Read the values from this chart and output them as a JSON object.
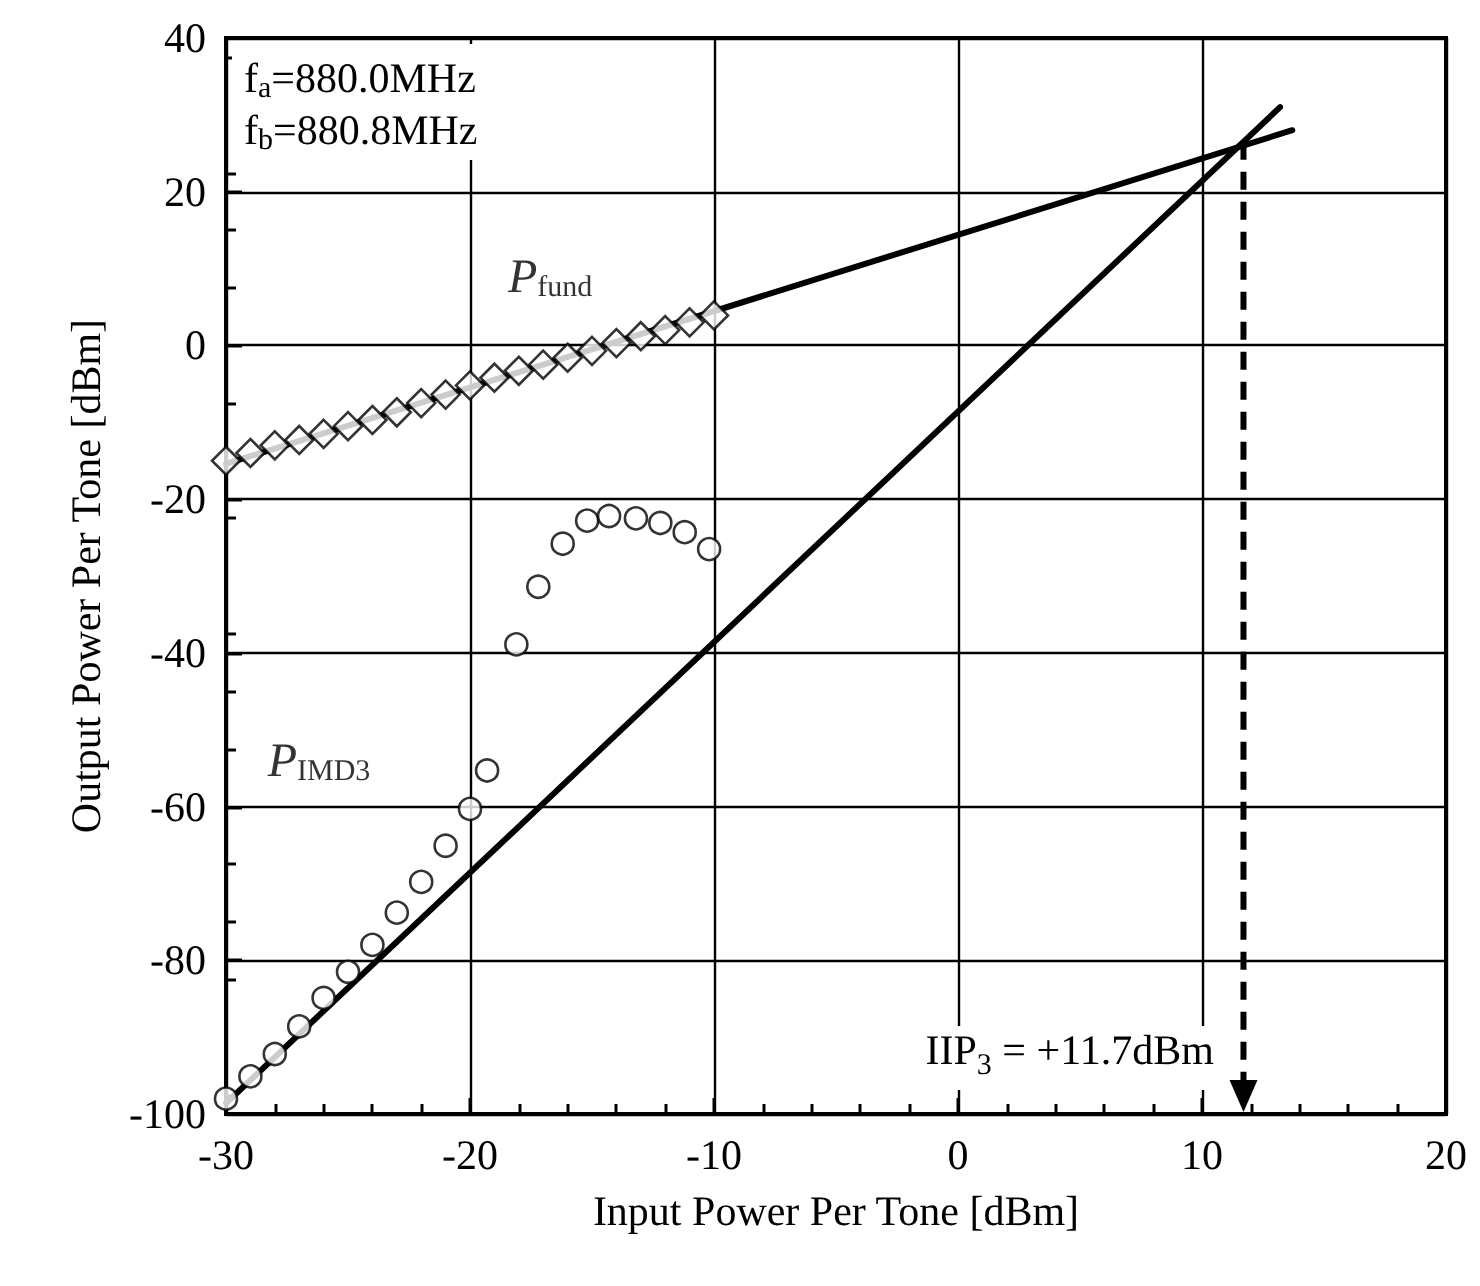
{
  "chart_data": {
    "type": "scatter",
    "xlabel": "Input Power Per Tone [dBm]",
    "ylabel": "Output Power Per Tone [dBm]",
    "xlim": [
      -30,
      20
    ],
    "xticks": [
      -30,
      -20,
      -10,
      0,
      10,
      20
    ],
    "ylim": [
      -100,
      40
    ],
    "yticks": [
      -100,
      -80,
      -60,
      -40,
      -20,
      0,
      20,
      40
    ],
    "grid": true,
    "legend": false,
    "annotations": [
      "f$_{a}$=880.0MHz",
      "f$_{b}$=880.8MHz",
      {
        "text": "IIP$_{3}$ = +11.7dBm",
        "x": 11.7,
        "y": 26.5
      }
    ],
    "series": [
      {
        "name": "P$_{fund}$",
        "marker": "diamond",
        "color": "#000000",
        "x": [
          -30,
          -29,
          -28,
          -27,
          -26,
          -25,
          -24,
          -23,
          -22,
          -21,
          -20,
          -19,
          -18,
          -17,
          -16,
          -15,
          -14,
          -13,
          -12,
          -11,
          -10
        ],
        "values": [
          -15,
          -14,
          -13,
          -12.3,
          -11.5,
          -10.5,
          -9.7,
          -8.7,
          -7.5,
          -6.4,
          -5.2,
          -4.2,
          -3.3,
          -2.5,
          -1.6,
          -0.7,
          0.3,
          1.2,
          2,
          3,
          3.9
        ]
      },
      {
        "name": "P$_{IMD3}$",
        "marker": "circle",
        "color": "#000000",
        "x": [
          -30,
          -29,
          -28,
          -27,
          -26,
          -25,
          -24,
          -23,
          -22,
          -21,
          -20,
          -19.3,
          -18.1,
          -17.2,
          -16.2,
          -15.2,
          -14.3,
          -13.2,
          -12.2,
          -11.2,
          -10.2
        ],
        "values": [
          -98,
          -95.1,
          -92.2,
          -88.6,
          -84.9,
          -81.5,
          -78,
          -73.8,
          -69.8,
          -65.1,
          -60.3,
          -55.3,
          -38.9,
          -31.4,
          -25.8,
          -22.8,
          -22.2,
          -22.5,
          -23.1,
          -24.3,
          -26.5
        ]
      },
      {
        "type": "line",
        "marker": "none",
        "line_style": "solid",
        "color": "#000000",
        "x": [
          -30,
          13.7
        ],
        "values": [
          -15.4,
          28
        ]
      },
      {
        "type": "line",
        "marker": "none",
        "line_style": "solid",
        "color": "#000000",
        "x": [
          -30,
          13.2
        ],
        "values": [
          -98.6,
          31
        ]
      }
    ]
  }
}
